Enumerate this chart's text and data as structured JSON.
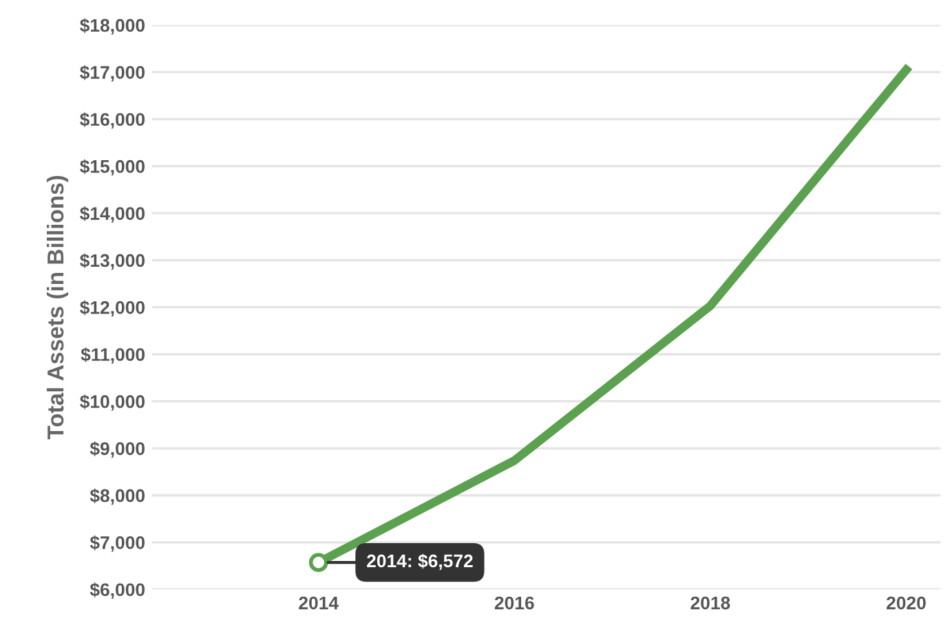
{
  "chart_data": {
    "type": "line",
    "ylabel": "Total Assets (in Billions)",
    "x": [
      2014,
      2016,
      2018,
      2020
    ],
    "series": [
      {
        "color": "#5ba150",
        "values": [
          6572,
          8740,
          12030,
          17050
        ]
      }
    ],
    "xlim": [
      2012.3,
      2020.35
    ],
    "xticks": [
      2014,
      2016,
      2018,
      2020
    ],
    "ylim": [
      6000,
      18000
    ],
    "yticks": [
      {
        "value": 6000,
        "label": "$6,000"
      },
      {
        "value": 7000,
        "label": "$7,000"
      },
      {
        "value": 8000,
        "label": "$8,000"
      },
      {
        "value": 9000,
        "label": "$9,000"
      },
      {
        "value": 10000,
        "label": "$10,000"
      },
      {
        "value": 11000,
        "label": "$11,000"
      },
      {
        "value": 12000,
        "label": "$12,000"
      },
      {
        "value": 13000,
        "label": "$13,000"
      },
      {
        "value": 14000,
        "label": "$14,000"
      },
      {
        "value": 15000,
        "label": "$15,000"
      },
      {
        "value": 16000,
        "label": "$16,000"
      },
      {
        "value": 17000,
        "label": "$17,000"
      },
      {
        "value": 18000,
        "label": "$18,000"
      }
    ],
    "grid": "y",
    "annotations": [
      {
        "text": "2014: $6,572",
        "x": 2014,
        "y": 6572
      }
    ]
  }
}
